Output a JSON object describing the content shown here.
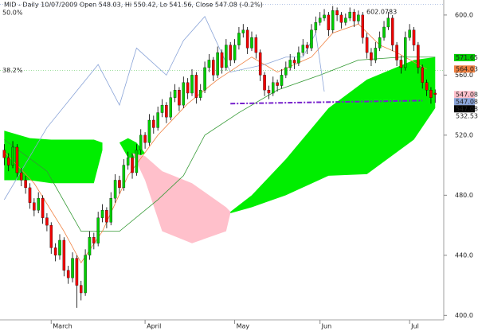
{
  "chart_data": {
    "type": "candlestick",
    "title": "MID - Daily 10/07/2009 Open 548.03, Hi 550.42, Lo 541.56, Close 547.08 (-0.2%)",
    "up_color": "#00cc00",
    "down_color": "#ee0000",
    "candles": [
      [
        510,
        514,
        500,
        505
      ],
      [
        505,
        508,
        496,
        500
      ],
      [
        500,
        516,
        498,
        512
      ],
      [
        512,
        514,
        492,
        495
      ],
      [
        495,
        498,
        486,
        490
      ],
      [
        490,
        493,
        481,
        485
      ],
      [
        485,
        488,
        471,
        475
      ],
      [
        475,
        478,
        466,
        470
      ],
      [
        470,
        482,
        468,
        478
      ],
      [
        478,
        480,
        461,
        465
      ],
      [
        465,
        468,
        456,
        460
      ],
      [
        460,
        462,
        441,
        445
      ],
      [
        445,
        448,
        436,
        440
      ],
      [
        440,
        454,
        437,
        450
      ],
      [
        450,
        452,
        426,
        430
      ],
      [
        430,
        433,
        421,
        425
      ],
      [
        425,
        442,
        422,
        438
      ],
      [
        438,
        440,
        405,
        420
      ],
      [
        420,
        423,
        410,
        415
      ],
      [
        415,
        444,
        413,
        440
      ],
      [
        440,
        456,
        437,
        452
      ],
      [
        452,
        455,
        444,
        448
      ],
      [
        448,
        469,
        446,
        465
      ],
      [
        465,
        474,
        462,
        470
      ],
      [
        470,
        472,
        458,
        462
      ],
      [
        462,
        482,
        460,
        478
      ],
      [
        478,
        494,
        475,
        490
      ],
      [
        490,
        493,
        481,
        485
      ],
      [
        485,
        504,
        483,
        500
      ],
      [
        500,
        509,
        497,
        505
      ],
      [
        505,
        508,
        491,
        495
      ],
      [
        495,
        514,
        493,
        510
      ],
      [
        510,
        524,
        507,
        520
      ],
      [
        520,
        522,
        511,
        515
      ],
      [
        515,
        534,
        513,
        530
      ],
      [
        530,
        533,
        521,
        525
      ],
      [
        525,
        539,
        523,
        535
      ],
      [
        535,
        544,
        532,
        540
      ],
      [
        540,
        542,
        528,
        532
      ],
      [
        532,
        549,
        530,
        545
      ],
      [
        545,
        554,
        542,
        550
      ],
      [
        550,
        552,
        536,
        540
      ],
      [
        540,
        559,
        538,
        555
      ],
      [
        555,
        558,
        544,
        548
      ],
      [
        548,
        564,
        546,
        560
      ],
      [
        560,
        562,
        541,
        545
      ],
      [
        545,
        554,
        543,
        550
      ],
      [
        550,
        569,
        548,
        565
      ],
      [
        565,
        574,
        562,
        570
      ],
      [
        570,
        572,
        556,
        560
      ],
      [
        560,
        579,
        558,
        575
      ],
      [
        575,
        577,
        561,
        565
      ],
      [
        565,
        584,
        563,
        580
      ],
      [
        580,
        582,
        566,
        570
      ],
      [
        570,
        584,
        568,
        580
      ],
      [
        580,
        592,
        577,
        588
      ],
      [
        588,
        594,
        585,
        590
      ],
      [
        590,
        592,
        574,
        578
      ],
      [
        578,
        589,
        576,
        585
      ],
      [
        585,
        587,
        571,
        575
      ],
      [
        575,
        577,
        556,
        560
      ],
      [
        560,
        562,
        546,
        550
      ],
      [
        550,
        553,
        544,
        548
      ],
      [
        548,
        559,
        546,
        555
      ],
      [
        555,
        557,
        549,
        553
      ],
      [
        553,
        564,
        551,
        560
      ],
      [
        560,
        569,
        558,
        565
      ],
      [
        565,
        574,
        563,
        570
      ],
      [
        570,
        572,
        564,
        568
      ],
      [
        568,
        579,
        566,
        575
      ],
      [
        575,
        584,
        573,
        580
      ],
      [
        580,
        582,
        574,
        578
      ],
      [
        578,
        594,
        576,
        590
      ],
      [
        590,
        599,
        588,
        595
      ],
      [
        595,
        602,
        593,
        598
      ],
      [
        598,
        604,
        596,
        600
      ],
      [
        600,
        602,
        586,
        590
      ],
      [
        590,
        606,
        588,
        603
      ],
      [
        603,
        605,
        596,
        600
      ],
      [
        600,
        602,
        591,
        595
      ],
      [
        595,
        601,
        593,
        598
      ],
      [
        598,
        605,
        596,
        602
      ],
      [
        602,
        604,
        592,
        596
      ],
      [
        596,
        603,
        594,
        600
      ],
      [
        600,
        602,
        581,
        585
      ],
      [
        585,
        588,
        571,
        575
      ],
      [
        575,
        578,
        566,
        570
      ],
      [
        570,
        582,
        568,
        578
      ],
      [
        578,
        589,
        576,
        585
      ],
      [
        585,
        596,
        583,
        592
      ],
      [
        592,
        602,
        590,
        598
      ],
      [
        598,
        600,
        576,
        580
      ],
      [
        580,
        582,
        566,
        570
      ],
      [
        570,
        573,
        561,
        565
      ],
      [
        565,
        589,
        563,
        585
      ],
      [
        585,
        594,
        583,
        590
      ],
      [
        590,
        592,
        576,
        580
      ],
      [
        580,
        582,
        561,
        565
      ],
      [
        565,
        567,
        551,
        555
      ],
      [
        555,
        557,
        546,
        550
      ],
      [
        550,
        552,
        541,
        545
      ],
      [
        548.03,
        550.42,
        541.56,
        547.08
      ]
    ],
    "clouds": [
      {
        "color": "#00ee00",
        "x": [
          0,
          6,
          11,
          16,
          21,
          23
        ],
        "upper": [
          523,
          518,
          517,
          517,
          517,
          515
        ],
        "lower": [
          490,
          490,
          488,
          488,
          488,
          510
        ]
      },
      {
        "color": "#00ee00",
        "x": [
          27,
          29,
          31,
          33
        ],
        "upper": [
          515,
          518,
          515,
          508
        ],
        "lower": [
          515,
          505,
          505,
          508
        ]
      },
      {
        "color": "#ffc0cb",
        "x": [
          30,
          33,
          37,
          44,
          52,
          53
        ],
        "upper": [
          508,
          506,
          496,
          488,
          472,
          469
        ],
        "lower": [
          508,
          490,
          456,
          448,
          456,
          468
        ]
      },
      {
        "color": "#00ee00",
        "x": [
          53,
          58,
          66,
          76,
          85,
          96,
          101
        ],
        "upper": [
          469,
          480,
          504,
          538,
          557,
          570,
          572
        ],
        "lower": [
          468,
          472,
          480,
          493,
          494,
          517,
          538
        ]
      }
    ],
    "lines": [
      {
        "color": "#339933",
        "x": [
          0,
          10,
          18,
          27,
          36,
          42,
          47,
          55,
          64,
          74,
          83,
          93,
          101
        ],
        "values": [
          517,
          496,
          456,
          456,
          477,
          493,
          520,
          535,
          550,
          560,
          570,
          572,
          572
        ]
      },
      {
        "color": "#f08040",
        "x": [
          0,
          7,
          14,
          18,
          23,
          29,
          36,
          43,
          50,
          58,
          64,
          72,
          77,
          83,
          88,
          92,
          99
        ],
        "values": [
          509,
          488,
          456,
          435,
          456,
          493,
          520,
          541,
          557,
          572,
          562,
          572,
          588,
          594,
          580,
          575,
          564
        ]
      },
      {
        "color": "#8aa4d8",
        "x": [
          0,
          10,
          16,
          22,
          27,
          31,
          38,
          42,
          47,
          53,
          61,
          66,
          70,
          73,
          75
        ],
        "values": [
          477,
          525,
          546,
          567,
          540,
          578,
          560,
          583,
          599,
          562,
          567,
          572,
          572,
          588,
          549
        ]
      },
      {
        "color": "#7722cc",
        "dash": true,
        "x": [
          53,
          98
        ],
        "values": [
          541,
          543
        ]
      }
    ],
    "xlim": [
      -1,
      103
    ],
    "xticks": [
      {
        "value": 11,
        "label": "March"
      },
      {
        "value": 33,
        "label": "April"
      },
      {
        "value": 54,
        "label": "May"
      },
      {
        "value": 74,
        "label": "Jun"
      },
      {
        "value": 95,
        "label": "Jul"
      }
    ],
    "ylim": [
      397,
      610
    ],
    "yticks": [
      {
        "value": 400,
        "label": "400.0"
      },
      {
        "value": 440,
        "label": "440.0"
      },
      {
        "value": 480,
        "label": "480.0"
      },
      {
        "value": 520,
        "label": "520.0"
      },
      {
        "value": 560,
        "label": "560.0"
      },
      {
        "value": 600,
        "label": "600.0"
      }
    ],
    "high_label": 602.0783,
    "fib_levels": [
      {
        "label": "50.0%",
        "value": 607,
        "color": "#8aa4d8"
      },
      {
        "label": "38.2%",
        "value": 563,
        "color": "#66cc66"
      }
    ],
    "price_tags": [
      {
        "value": 571.65,
        "bg": "#00cc00",
        "text_color": "#000000"
      },
      {
        "value": 564.03,
        "bg": "#f08040",
        "text_color": "#ffffff"
      },
      {
        "value": 547.08,
        "bg": "#ffc0cb",
        "text_color": "#333333"
      },
      {
        "value": 547.08,
        "bg": "#8aa4d8",
        "text_color": "#000000"
      },
      {
        "value": 547.08,
        "bg": "#000000",
        "text_color": "#ffffff"
      },
      {
        "value": 532.53,
        "bg": "none",
        "text_color": "#00aa00"
      }
    ]
  }
}
